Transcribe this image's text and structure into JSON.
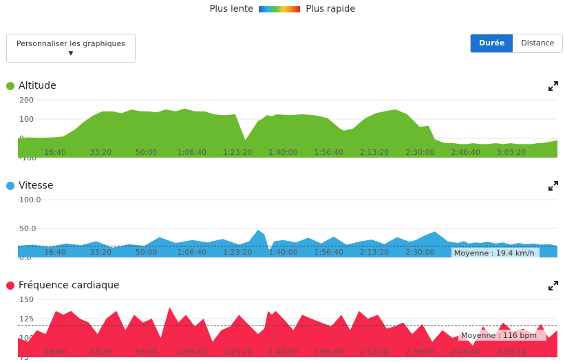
{
  "legend": {
    "slow_label": "Plus lente",
    "fast_label": "Plus rapide"
  },
  "customize_label": "Personnaliser les graphiques",
  "toggle": {
    "duration_label": "Durée",
    "distance_label": "Distance",
    "active": "duration"
  },
  "x_ticks": [
    "16:40",
    "33:20",
    "50:00",
    "1:06:40",
    "1:23:20",
    "1:40:00",
    "1:56:40",
    "2:13:20",
    "2:30:00",
    "2:46:40",
    "3:03:20"
  ],
  "colors": {
    "altitude": "#6aba30",
    "speed": "#37a9e1",
    "heart": "#f5274b",
    "accent": "#1a73d1"
  },
  "chart_data": [
    {
      "type": "area",
      "title": "Altitude",
      "ylim": [
        -100,
        200
      ],
      "y_ticks": [
        "200",
        "100",
        "0",
        "-100"
      ],
      "x": [
        0,
        8,
        18,
        28,
        36,
        45,
        52,
        60,
        67,
        75,
        82,
        90,
        97,
        103,
        110,
        117,
        125,
        132,
        140,
        148,
        155,
        163,
        172,
        180,
        187,
        190,
        193,
        197,
        201,
        205,
        215,
        225,
        235,
        245,
        255,
        258,
        265,
        275,
        283,
        290,
        299,
        308,
        318,
        325,
        330,
        338,
        345,
        350,
        355,
        360,
        366,
        372,
        378,
        384,
        390,
        396,
        399,
        403,
        407,
        411,
        415,
        419,
        423,
        427
      ],
      "values": [
        0,
        5,
        3,
        5,
        10,
        45,
        85,
        120,
        140,
        140,
        130,
        150,
        140,
        140,
        135,
        150,
        140,
        155,
        140,
        140,
        125,
        120,
        125,
        -10,
        60,
        90,
        100,
        120,
        115,
        125,
        120,
        125,
        120,
        105,
        50,
        40,
        50,
        105,
        130,
        140,
        150,
        125,
        60,
        65,
        -5,
        -25,
        -25,
        -30,
        -30,
        -25,
        -30,
        -30,
        -25,
        -30,
        -25,
        -30,
        -30,
        -30,
        -30,
        -25,
        -25,
        -20,
        -15,
        -10
      ]
    },
    {
      "type": "area",
      "title": "Vitesse",
      "ylim": [
        0,
        100
      ],
      "y_ticks": [
        "100.0",
        "50.0",
        "0.0"
      ],
      "average": 19.4,
      "average_label": "Moyenne : 19.4 km/h",
      "x": [
        0,
        12,
        25,
        38,
        50,
        62,
        75,
        88,
        100,
        112,
        125,
        138,
        150,
        162,
        175,
        183,
        190,
        195,
        199,
        203,
        210,
        220,
        230,
        240,
        250,
        260,
        270,
        280,
        290,
        300,
        310,
        315,
        322,
        330,
        340,
        348,
        353,
        357,
        362,
        366,
        372,
        378,
        384,
        390,
        396,
        402,
        408,
        414,
        420,
        427
      ],
      "values": [
        20,
        22,
        18,
        24,
        21,
        28,
        17,
        23,
        20,
        35,
        25,
        30,
        26,
        32,
        22,
        28,
        48,
        40,
        12,
        28,
        30,
        26,
        34,
        24,
        36,
        22,
        27,
        31,
        23,
        35,
        27,
        30,
        38,
        45,
        28,
        25,
        28,
        24,
        26,
        25,
        27,
        24,
        26,
        22,
        25,
        23,
        24,
        22,
        23,
        20
      ]
    },
    {
      "type": "area",
      "title": "Fréquence cardiaque",
      "ylim": [
        75,
        150
      ],
      "y_ticks": [
        "150",
        "125",
        "100",
        "75"
      ],
      "average": 116,
      "average_label": "Moyenne : 116 bpm",
      "x": [
        0,
        8,
        15,
        22,
        30,
        36,
        42,
        49,
        56,
        63,
        70,
        78,
        85,
        92,
        99,
        106,
        113,
        120,
        127,
        133,
        140,
        147,
        154,
        161,
        168,
        175,
        182,
        190,
        195,
        198,
        201,
        204,
        210,
        218,
        225,
        232,
        240,
        248,
        256,
        263,
        270,
        277,
        285,
        292,
        298,
        305,
        312,
        320,
        328,
        336,
        344,
        352,
        360,
        368,
        376,
        384,
        392,
        400,
        408,
        414,
        420,
        427
      ],
      "values": [
        100,
        95,
        110,
        105,
        135,
        130,
        135,
        125,
        120,
        105,
        125,
        135,
        110,
        130,
        120,
        125,
        100,
        140,
        120,
        130,
        115,
        125,
        95,
        110,
        115,
        130,
        118,
        105,
        112,
        135,
        130,
        135,
        125,
        110,
        130,
        125,
        120,
        115,
        130,
        110,
        135,
        125,
        130,
        112,
        115,
        120,
        105,
        118,
        95,
        110,
        100,
        105,
        90,
        115,
        100,
        120,
        108,
        112,
        105,
        118,
        100,
        110
      ]
    }
  ]
}
